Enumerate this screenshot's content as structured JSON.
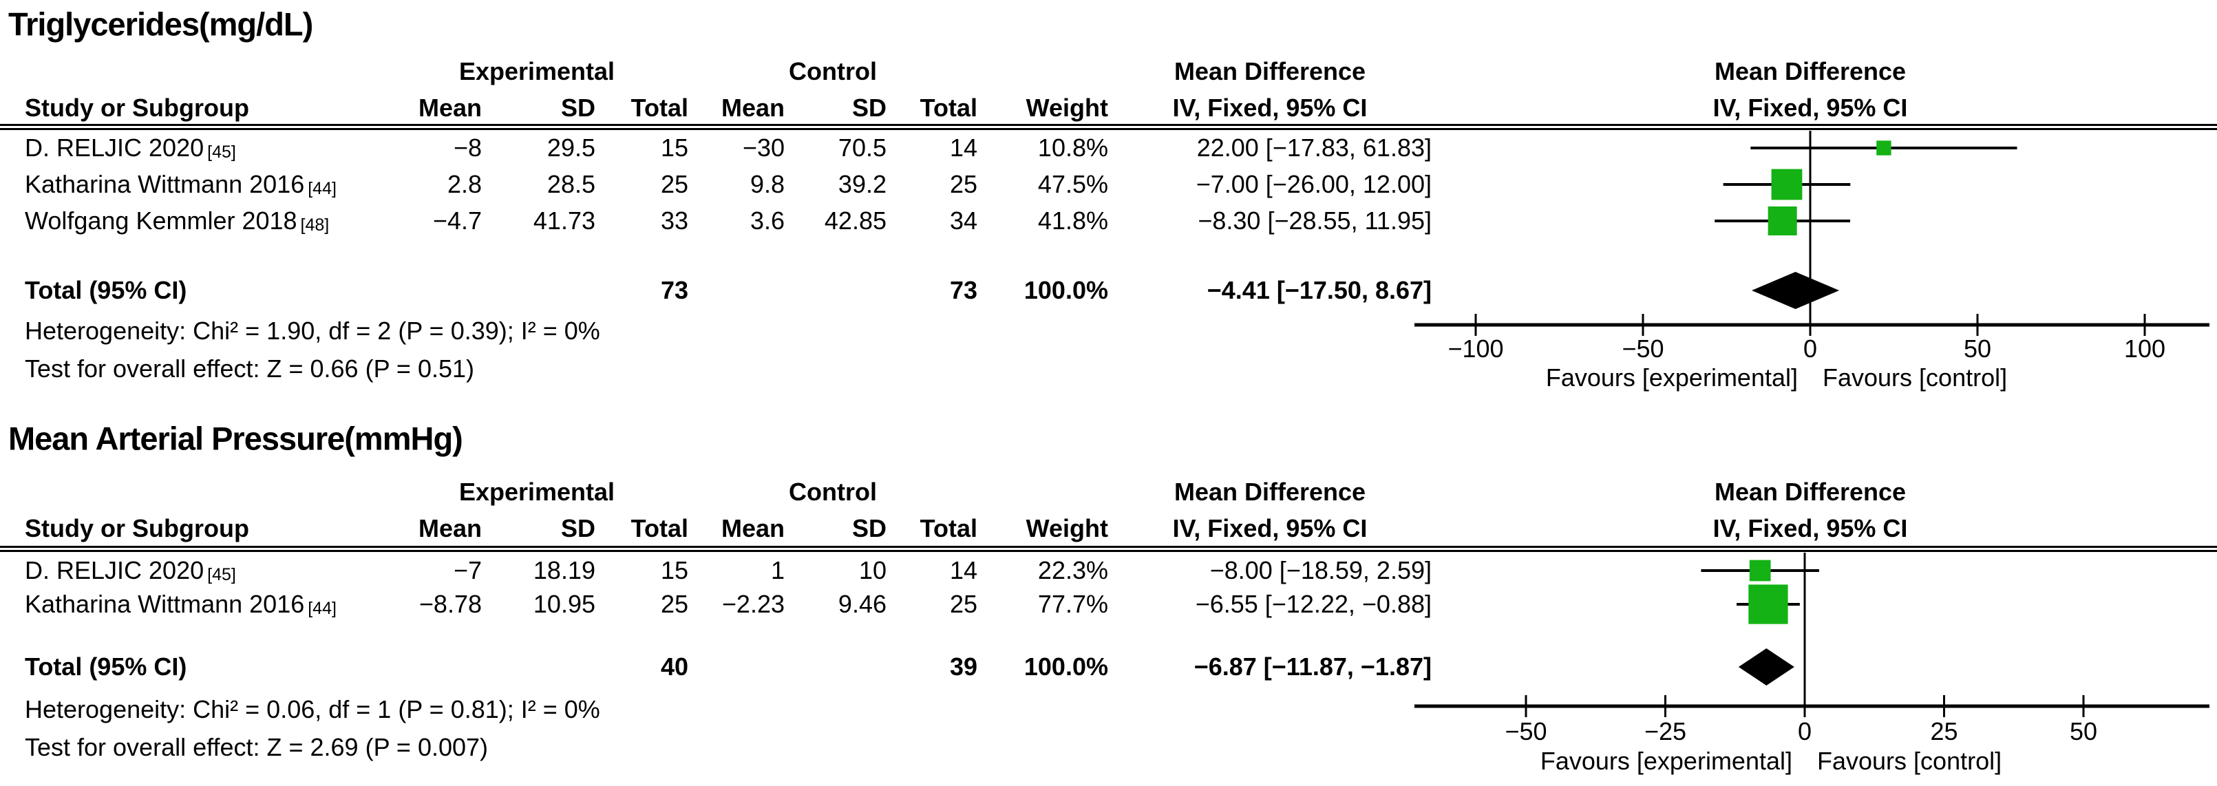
{
  "colors": {
    "square_green": "#14b214",
    "diamond_black": "#000000",
    "line_black": "#000000"
  },
  "panels": [
    {
      "title": "Triglycerides(mg/dL)",
      "groups": {
        "experimental": "Experimental",
        "control": "Control",
        "md": "Mean Difference"
      },
      "plot_header": {
        "line1": "Mean Difference",
        "line2": "IV, Fixed, 95% CI"
      },
      "columns": {
        "study": "Study or Subgroup",
        "mean": "Mean",
        "sd": "SD",
        "total": "Total",
        "weight": "Weight",
        "ci": "IV, Fixed, 95% CI"
      },
      "rows": [
        {
          "study": "D. RELJIC 2020",
          "ref": "[45]",
          "exp_mean": "−8",
          "exp_sd": "29.5",
          "exp_total": "15",
          "ctl_mean": "−30",
          "ctl_sd": "70.5",
          "ctl_total": "14",
          "weight": "10.8%",
          "ci": "22.00 [−17.83, 61.83]"
        },
        {
          "study": "Katharina Wittmann 2016",
          "ref": "[44]",
          "exp_mean": "2.8",
          "exp_sd": "28.5",
          "exp_total": "25",
          "ctl_mean": "9.8",
          "ctl_sd": "39.2",
          "ctl_total": "25",
          "weight": "47.5%",
          "ci": "−7.00 [−26.00, 12.00]"
        },
        {
          "study": "Wolfgang Kemmler 2018",
          "ref": "[48]",
          "exp_mean": "−4.7",
          "exp_sd": "41.73",
          "exp_total": "33",
          "ctl_mean": "3.6",
          "ctl_sd": "42.85",
          "ctl_total": "34",
          "weight": "41.8%",
          "ci": "−8.30 [−28.55, 11.95]"
        }
      ],
      "total": {
        "label": "Total (95% CI)",
        "exp_total": "73",
        "ctl_total": "73",
        "weight": "100.0%",
        "ci": "−4.41 [−17.50, 8.67]"
      },
      "heterogeneity": "Heterogeneity: Chi² = 1.90, df = 2 (P = 0.39); I² = 0%",
      "overall_effect": "Test for overall effect: Z = 0.66 (P = 0.51)"
    },
    {
      "title": "Mean Arterial Pressure(mmHg)",
      "groups": {
        "experimental": "Experimental",
        "control": "Control",
        "md": "Mean Difference"
      },
      "plot_header": {
        "line1": "Mean Difference",
        "line2": "IV, Fixed, 95% CI"
      },
      "columns": {
        "study": "Study or Subgroup",
        "mean": "Mean",
        "sd": "SD",
        "total": "Total",
        "weight": "Weight",
        "ci": "IV, Fixed, 95% CI"
      },
      "rows": [
        {
          "study": "D. RELJIC 2020",
          "ref": "[45]",
          "exp_mean": "−7",
          "exp_sd": "18.19",
          "exp_total": "15",
          "ctl_mean": "1",
          "ctl_sd": "10",
          "ctl_total": "14",
          "weight": "22.3%",
          "ci": "−8.00 [−18.59, 2.59]"
        },
        {
          "study": "Katharina Wittmann 2016",
          "ref": "[44]",
          "exp_mean": "−8.78",
          "exp_sd": "10.95",
          "exp_total": "25",
          "ctl_mean": "−2.23",
          "ctl_sd": "9.46",
          "ctl_total": "25",
          "weight": "77.7%",
          "ci": "−6.55 [−12.22, −0.88]"
        }
      ],
      "total": {
        "label": "Total (95% CI)",
        "exp_total": "40",
        "ctl_total": "39",
        "weight": "100.0%",
        "ci": "−6.87 [−11.87, −1.87]"
      },
      "heterogeneity": "Heterogeneity: Chi² = 0.06, df = 1 (P = 0.81); I² = 0%",
      "overall_effect": "Test for overall effect: Z = 2.69 (P = 0.007)"
    }
  ],
  "chart_data": [
    {
      "type": "scatter",
      "title": "Triglycerides(mg/dL)",
      "subtitle": "Forest plot, Mean Difference, IV, Fixed, 95% CI",
      "studies": [
        {
          "name": "D. RELJIC 2020",
          "ref": "[45]",
          "md": 22.0,
          "ci_low": -17.83,
          "ci_high": 61.83,
          "weight_pct": 10.8
        },
        {
          "name": "Katharina Wittmann 2016",
          "ref": "[44]",
          "md": -7.0,
          "ci_low": -26.0,
          "ci_high": 12.0,
          "weight_pct": 47.5
        },
        {
          "name": "Wolfgang Kemmler 2018",
          "ref": "[48]",
          "md": -8.3,
          "ci_low": -28.55,
          "ci_high": 11.95,
          "weight_pct": 41.8
        }
      ],
      "total": {
        "md": -4.41,
        "ci_low": -17.5,
        "ci_high": 8.67,
        "n_experimental": 73,
        "n_control": 73,
        "weight_pct": 100.0
      },
      "heterogeneity": "Chi² = 1.90, df = 2 (P = 0.39); I² = 0%",
      "overall_effect": "Z = 0.66 (P = 0.51)",
      "xlim": [
        -118,
        120
      ],
      "ticks": [
        -100,
        -50,
        0,
        50,
        100
      ],
      "xlabel_left": "Favours [experimental]",
      "xlabel_right": "Favours [control]",
      "grid": false,
      "legend": "none"
    },
    {
      "type": "scatter",
      "title": "Mean Arterial Pressure(mmHg)",
      "subtitle": "Forest plot, Mean Difference, IV, Fixed, 95% CI",
      "studies": [
        {
          "name": "D. RELJIC 2020",
          "ref": "[45]",
          "md": -8.0,
          "ci_low": -18.59,
          "ci_high": 2.59,
          "weight_pct": 22.3
        },
        {
          "name": "Katharina Wittmann 2016",
          "ref": "[44]",
          "md": -6.55,
          "ci_low": -12.22,
          "ci_high": -0.88,
          "weight_pct": 77.7
        }
      ],
      "total": {
        "md": -6.87,
        "ci_low": -11.87,
        "ci_high": -1.87,
        "n_experimental": 40,
        "n_control": 39,
        "weight_pct": 100.0
      },
      "heterogeneity": "Chi² = 0.06, df = 1 (P = 0.81); I² = 0%",
      "overall_effect": "Z = 2.69 (P = 0.007)",
      "xlim": [
        -70,
        74
      ],
      "ticks": [
        -50,
        -25,
        0,
        25,
        50
      ],
      "xlabel_left": "Favours [experimental]",
      "xlabel_right": "Favours [control]",
      "grid": false,
      "legend": "none"
    }
  ]
}
